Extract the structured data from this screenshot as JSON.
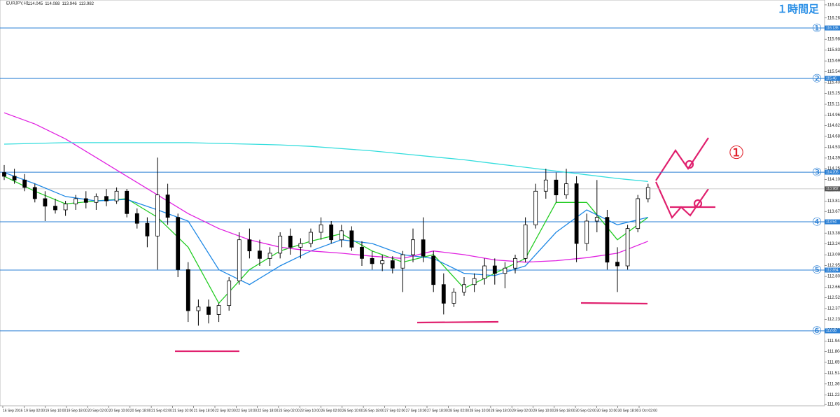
{
  "chart_data": {
    "type": "candlestick",
    "symbol": "EURJPY,H1",
    "last_bar": [
      114.045,
      114.088,
      113.946,
      113.982
    ],
    "title": "１時間足",
    "annotation": "①",
    "ylim": [
      111.03,
      116.51
    ],
    "yticks": [
      116.445,
      116.269,
      116.124,
      115.984,
      115.839,
      115.694,
      115.549,
      115.404,
      115.259,
      115.114,
      114.969,
      114.829,
      114.684,
      114.539,
      114.394,
      114.254,
      114.109,
      113.964,
      113.819,
      113.679,
      113.534,
      113.389,
      113.244,
      113.099,
      112.954,
      112.809,
      112.664,
      112.524,
      112.379,
      112.234,
      112.089,
      111.944,
      111.804,
      111.659,
      111.514,
      111.369,
      111.224,
      111.094
    ],
    "xtick_labels": [
      "16 Sep 2016",
      "19 Sep 02:00",
      "19 Sep 10:00",
      "19 Sep 18:00",
      "20 Sep 02:00",
      "20 Sep 10:00",
      "20 Sep 18:00",
      "21 Sep 02:00",
      "21 Sep 10:00",
      "21 Sep 18:00",
      "22 Sep 02:00",
      "22 Sep 10:00",
      "22 Sep 18:00",
      "23 Sep 02:00",
      "23 Sep 10:00",
      "26 Sep 02:00",
      "26 Sep 10:00",
      "26 Sep 18:00",
      "27 Sep 02:00",
      "27 Sep 10:00",
      "27 Sep 18:00",
      "28 Sep 02:00",
      "28 Sep 10:00",
      "28 Sep 18:00",
      "29 Sep 02:00",
      "29 Sep 10:00",
      "29 Sep 18:00",
      "30 Sep 02:00",
      "30 Sep 10:00",
      "30 Sep 18:00",
      "3 Oct 02:00"
    ],
    "up_color": "#ffffff",
    "down_color": "#000000",
    "candles": [
      [
        114.2,
        114.3,
        114.1,
        114.15
      ],
      [
        114.15,
        114.25,
        114.05,
        114.1
      ],
      [
        114.1,
        114.18,
        113.95,
        114.0
      ],
      [
        114.0,
        114.05,
        113.8,
        113.85
      ],
      [
        113.85,
        113.95,
        113.55,
        113.75
      ],
      [
        113.75,
        113.85,
        113.65,
        113.7
      ],
      [
        113.7,
        113.82,
        113.62,
        113.78
      ],
      [
        113.78,
        113.9,
        113.7,
        113.85
      ],
      [
        113.85,
        113.95,
        113.72,
        113.8
      ],
      [
        113.8,
        113.92,
        113.7,
        113.88
      ],
      [
        113.88,
        113.98,
        113.75,
        113.82
      ],
      [
        113.82,
        114.0,
        113.78,
        113.95
      ],
      [
        113.95,
        113.98,
        113.6,
        113.65
      ],
      [
        113.65,
        113.72,
        113.45,
        113.52
      ],
      [
        113.52,
        113.6,
        113.2,
        113.35
      ],
      [
        113.35,
        114.4,
        112.9,
        113.9
      ],
      [
        113.9,
        114.05,
        113.5,
        113.6
      ],
      [
        113.6,
        113.65,
        112.8,
        112.9
      ],
      [
        112.9,
        113.0,
        112.2,
        112.35
      ],
      [
        112.35,
        112.5,
        112.15,
        112.4
      ],
      [
        112.4,
        112.5,
        112.18,
        112.3
      ],
      [
        112.3,
        112.45,
        112.2,
        112.42
      ],
      [
        112.42,
        112.8,
        112.35,
        112.75
      ],
      [
        112.75,
        113.4,
        112.7,
        113.3
      ],
      [
        113.3,
        113.45,
        113.05,
        113.15
      ],
      [
        113.15,
        113.3,
        112.95,
        113.05
      ],
      [
        113.05,
        113.2,
        112.95,
        113.12
      ],
      [
        113.12,
        113.4,
        113.05,
        113.35
      ],
      [
        113.35,
        113.45,
        113.1,
        113.2
      ],
      [
        113.2,
        113.32,
        113.05,
        113.25
      ],
      [
        113.25,
        113.45,
        113.2,
        113.4
      ],
      [
        113.4,
        113.6,
        113.3,
        113.5
      ],
      [
        113.5,
        113.55,
        113.25,
        113.3
      ],
      [
        113.3,
        113.5,
        113.2,
        113.42
      ],
      [
        113.42,
        113.48,
        113.15,
        113.2
      ],
      [
        113.2,
        113.28,
        112.95,
        113.05
      ],
      [
        113.05,
        113.15,
        112.9,
        112.98
      ],
      [
        112.98,
        113.1,
        112.88,
        113.02
      ],
      [
        113.02,
        113.08,
        112.85,
        112.92
      ],
      [
        112.92,
        113.15,
        112.6,
        113.1
      ],
      [
        113.1,
        113.45,
        113.0,
        113.3
      ],
      [
        113.3,
        113.6,
        113.0,
        113.08
      ],
      [
        113.08,
        113.15,
        112.6,
        112.7
      ],
      [
        112.7,
        112.85,
        112.3,
        112.45
      ],
      [
        112.45,
        112.65,
        112.4,
        112.6
      ],
      [
        112.6,
        112.8,
        112.55,
        112.7
      ],
      [
        112.7,
        112.85,
        112.6,
        112.78
      ],
      [
        112.78,
        113.05,
        112.7,
        112.95
      ],
      [
        112.95,
        113.05,
        112.7,
        112.85
      ],
      [
        112.85,
        113.0,
        112.65,
        112.92
      ],
      [
        112.92,
        113.1,
        112.85,
        113.05
      ],
      [
        113.05,
        113.6,
        113.0,
        113.5
      ],
      [
        113.5,
        114.05,
        113.45,
        113.95
      ],
      [
        113.95,
        114.25,
        113.85,
        114.1
      ],
      [
        114.1,
        114.2,
        113.8,
        113.9
      ],
      [
        113.9,
        114.25,
        113.85,
        114.05
      ],
      [
        114.05,
        114.15,
        113.0,
        113.25
      ],
      [
        113.25,
        113.65,
        113.15,
        113.55
      ],
      [
        113.55,
        114.1,
        113.4,
        113.6
      ],
      [
        113.6,
        113.7,
        112.9,
        113.0
      ],
      [
        113.0,
        113.2,
        112.6,
        112.95
      ],
      [
        112.95,
        113.5,
        112.9,
        113.45
      ],
      [
        113.45,
        113.9,
        113.4,
        113.85
      ],
      [
        113.85,
        114.05,
        113.8,
        114.0
      ]
    ],
    "ma_x": [
      0,
      3,
      6,
      9,
      12,
      15,
      18,
      21,
      24,
      27,
      30,
      33,
      36,
      39,
      42,
      45,
      48,
      51,
      54,
      57,
      60,
      63
    ],
    "series": [
      {
        "color": "#22cc22",
        "values": [
          114.15,
          113.95,
          113.78,
          113.82,
          113.85,
          113.6,
          113.2,
          112.45,
          112.9,
          113.15,
          113.28,
          113.38,
          113.15,
          113.0,
          113.1,
          112.65,
          112.85,
          113.05,
          113.8,
          113.8,
          113.3,
          113.6
        ]
      },
      {
        "color": "#1e88e5",
        "values": [
          114.2,
          114.05,
          113.88,
          113.82,
          113.84,
          113.7,
          113.55,
          112.9,
          112.7,
          112.95,
          113.15,
          113.3,
          113.25,
          113.1,
          113.05,
          112.85,
          112.82,
          112.95,
          113.4,
          113.7,
          113.5,
          113.6
        ]
      },
      {
        "color": "#e020e0",
        "values": [
          115.0,
          114.85,
          114.65,
          114.4,
          114.15,
          113.9,
          113.65,
          113.45,
          113.3,
          113.2,
          113.15,
          113.12,
          113.08,
          113.05,
          113.15,
          113.1,
          113.03,
          113.0,
          113.02,
          113.06,
          113.12,
          113.28
        ]
      },
      {
        "color": "#33dddd",
        "values": [
          114.58,
          114.59,
          114.6,
          114.6,
          114.6,
          114.6,
          114.6,
          114.59,
          114.58,
          114.57,
          114.55,
          114.52,
          114.49,
          114.45,
          114.41,
          114.37,
          114.32,
          114.27,
          114.22,
          114.17,
          114.12,
          114.08
        ]
      }
    ],
    "hlines": [
      {
        "label": "①",
        "value": 116.135
      },
      {
        "label": "②",
        "value": 115.46
      },
      {
        "label": "③",
        "value": 114.205
      },
      {
        "label": "④",
        "value": 113.54
      },
      {
        "label": "⑤",
        "value": 112.894
      },
      {
        "label": "⑥",
        "value": 112.08
      }
    ],
    "hline_color": "#2a7fd4",
    "last_price": 113.982
  }
}
